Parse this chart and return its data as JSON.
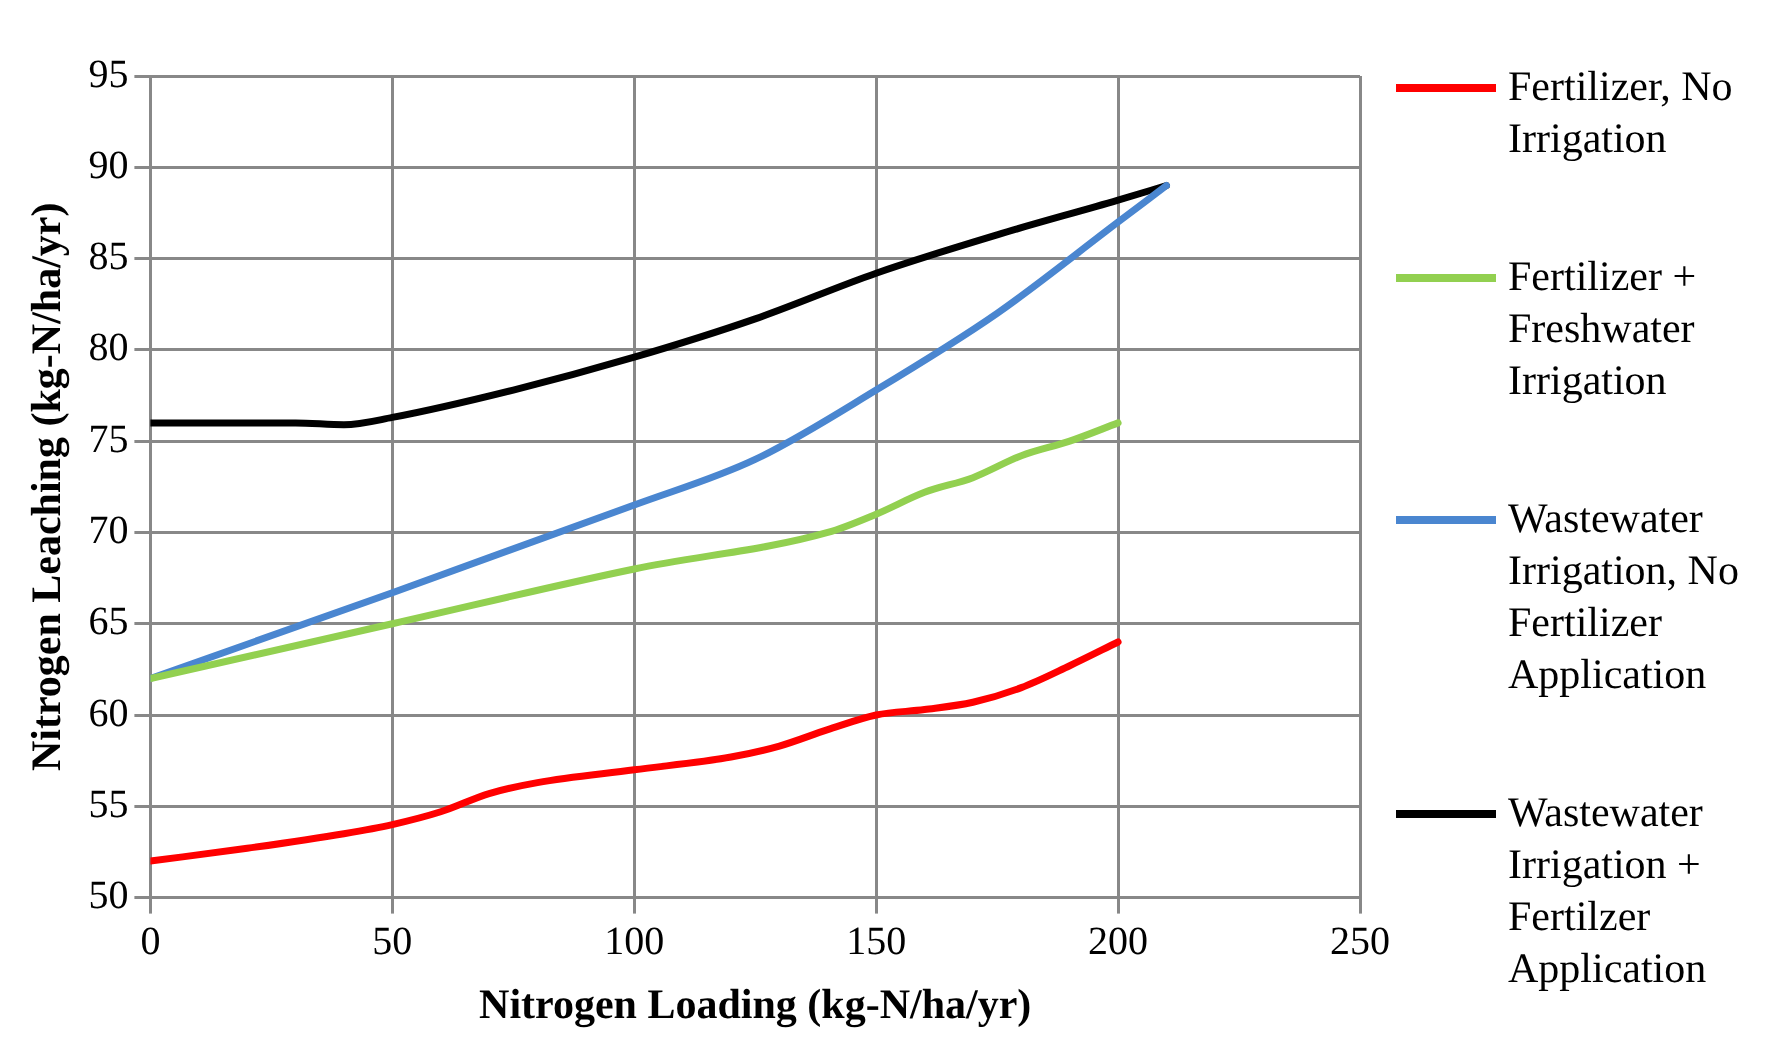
{
  "chart_data": {
    "type": "line",
    "xlabel": "Nitrogen Loading (kg-N/ha/yr)",
    "ylabel": "Nitrogen Leaching (kg-N/ha/yr)",
    "xlim": [
      0,
      250
    ],
    "xticks": [
      0,
      50,
      100,
      150,
      200,
      250
    ],
    "ylim": [
      50,
      95
    ],
    "yticks": [
      50,
      55,
      60,
      65,
      70,
      75,
      80,
      85,
      90,
      95
    ],
    "grid": true,
    "legend": "right",
    "marker": "none",
    "line_style": "solid",
    "series": [
      {
        "name": "Fertilizer, No Irrigation",
        "color": "#ff0000",
        "x": [
          0,
          20,
          40,
          50,
          60,
          70,
          80,
          100,
          120,
          130,
          140,
          150,
          160,
          170,
          180,
          190,
          200
        ],
        "values": [
          52,
          52.7,
          53.5,
          54,
          54.7,
          55.7,
          56.3,
          57,
          57.7,
          58.3,
          59.2,
          60,
          60.3,
          60.7,
          61.5,
          62.7,
          64
        ]
      },
      {
        "name": "Fertilizer + Freshwater Irrigation",
        "color": "#92d050",
        "x": [
          0,
          50,
          100,
          140,
          150,
          160,
          170,
          180,
          190,
          200
        ],
        "values": [
          62,
          65,
          68,
          70,
          71,
          72.2,
          73,
          74.2,
          75,
          76
        ]
      },
      {
        "name": "Wastewater Irrigation, No Fertilizer Application",
        "color": "#4a86d0",
        "x": [
          0,
          50,
          100,
          125,
          150,
          175,
          200,
          210
        ],
        "values": [
          62,
          66.7,
          71.5,
          74,
          77.8,
          82,
          87,
          89
        ]
      },
      {
        "name": "Wastewater Irrigation + Fertilzer Application",
        "color": "#000000",
        "x": [
          0,
          30,
          40,
          50,
          75,
          100,
          125,
          150,
          175,
          200,
          210
        ],
        "values": [
          76,
          76,
          75.9,
          76.3,
          77.8,
          79.6,
          81.7,
          84.2,
          86.3,
          88.2,
          89
        ]
      }
    ]
  }
}
